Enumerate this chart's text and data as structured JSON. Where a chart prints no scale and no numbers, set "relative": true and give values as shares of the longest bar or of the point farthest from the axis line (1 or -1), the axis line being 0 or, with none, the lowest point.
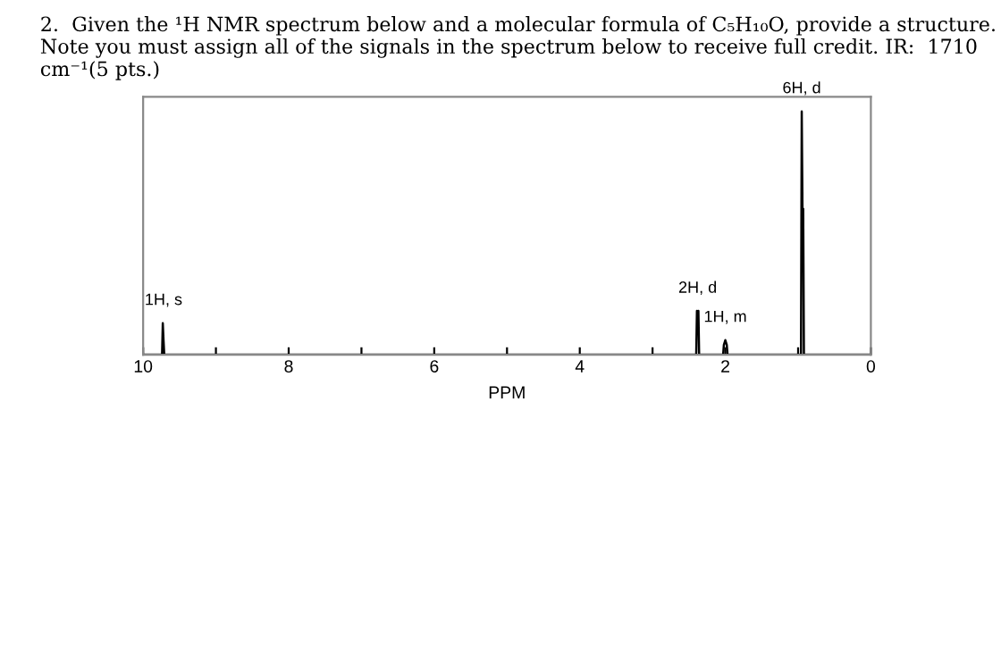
{
  "chart_data": {
    "type": "line",
    "title": "2.  Given the ¹H NMR spectrum below and a molecular formula of C₅H₁₀O, provide a structure. Note you must assign all of the signals in the spectrum below to receive full credit. IR:  1710 cm⁻¹(5 pts.)",
    "xlabel": "PPM",
    "relative": true,
    "series": [
      {
        "color": "#000000",
        "x": [
          10,
          9.74,
          9.73,
          9.72,
          9.71,
          9.7,
          2.4,
          2.39,
          2.38,
          2.37,
          2.36,
          2.03,
          2.02,
          2.0,
          1.98,
          1.97,
          0.96,
          0.95,
          0.94,
          0.93,
          0.92,
          0
        ],
        "values": [
          0,
          0,
          0.13,
          0.06,
          0,
          0,
          0,
          0.18,
          0.12,
          0.18,
          0,
          0,
          0.04,
          0.06,
          0.04,
          0,
          0,
          1,
          0.6,
          0.6,
          0,
          0
        ]
      }
    ],
    "xlim": [
      10,
      0
    ],
    "xticks": [
      10,
      {
        "value": 9,
        "label": null
      },
      8,
      {
        "value": 7,
        "label": null
      },
      6,
      {
        "value": 5,
        "label": null
      },
      4,
      {
        "value": 3,
        "label": null
      },
      2,
      {
        "value": 1,
        "label": null
      },
      0
    ],
    "annotations": [
      {
        "text": "1H, s",
        "x": 9.72,
        "y": 0.13
      },
      {
        "text": "2H, d",
        "x": 2.38,
        "y": 0.18
      },
      {
        "text": "1H, m",
        "x": 2.0,
        "y": 0.06
      },
      {
        "text": "6H, d",
        "x": 0.95,
        "y": 1
      }
    ],
    "grid": false,
    "marker": "none",
    "line_style": "solid"
  }
}
